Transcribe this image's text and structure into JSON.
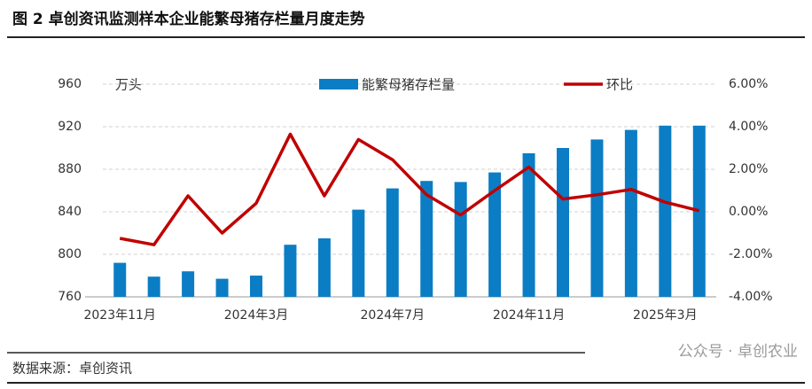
{
  "chart_data": {
    "type": "bar-line",
    "title": "图 2 卓创资讯监测样本企业能繁母猪存栏量月度走势",
    "y_unit": "万头",
    "source": "数据来源：卓创资讯",
    "watermark": "公众号 · 卓创农业",
    "categories": [
      "2023年11月",
      null,
      null,
      null,
      "2024年3月",
      null,
      null,
      null,
      "2024年7月",
      null,
      null,
      null,
      "2024年11月",
      null,
      null,
      null,
      "2025年3月",
      null
    ],
    "series": [
      {
        "name": "能繁母猪存栏量",
        "type": "bar",
        "color": "#0b7dc4",
        "axis": "y",
        "values": [
          792,
          779,
          784,
          777,
          780,
          809,
          815,
          842,
          862,
          869,
          868,
          877,
          895,
          900,
          908,
          917,
          921,
          921
        ]
      },
      {
        "name": "环比",
        "type": "line",
        "color": "#c00000",
        "axis": "y2",
        "values": [
          -1.25,
          -1.55,
          0.75,
          -1.0,
          0.4,
          3.65,
          0.75,
          3.4,
          2.45,
          0.8,
          -0.15,
          1.0,
          2.1,
          0.6,
          0.8,
          1.05,
          0.45,
          0.05
        ]
      }
    ],
    "ylim": [
      760,
      960
    ],
    "yticks": [
      760,
      800,
      840,
      880,
      920,
      960
    ],
    "y2lim": [
      -4,
      6
    ],
    "y2ticks": [
      {
        "value": -4,
        "label": "-4.00%"
      },
      {
        "value": -2,
        "label": "-2.00%"
      },
      {
        "value": 0,
        "label": "0.00%"
      },
      {
        "value": 2,
        "label": "2.00%"
      },
      {
        "value": 4,
        "label": "4.00%"
      },
      {
        "value": 6,
        "label": "6.00%"
      }
    ],
    "grid": true,
    "legend": "top"
  }
}
